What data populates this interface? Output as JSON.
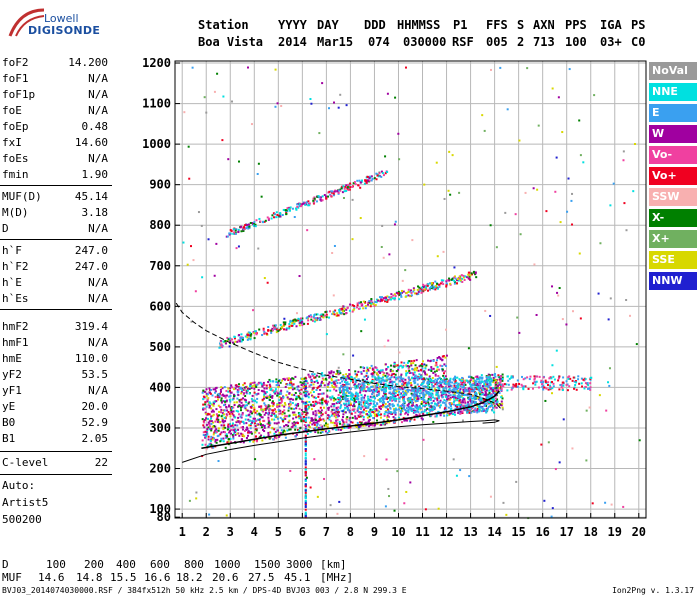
{
  "logo": {
    "line1": "Lowell",
    "line2": "DIGISONDE"
  },
  "header": {
    "labels": [
      "Station",
      "YYYY",
      "DAY",
      "DDD",
      "HHMMSS",
      "P1",
      "FFS",
      "S",
      "AXN",
      "PPS",
      "IGA",
      "PS"
    ],
    "values": [
      "Boa Vista",
      "2014",
      "Mar15",
      "074",
      "030000",
      "RSF",
      "005",
      "2",
      "713",
      "100",
      "03+",
      "C0"
    ]
  },
  "params": {
    "group1": [
      {
        "label": "foF2",
        "value": "14.200"
      },
      {
        "label": "foF1",
        "value": "N/A"
      },
      {
        "label": "foF1p",
        "value": "N/A"
      },
      {
        "label": "foE",
        "value": "N/A"
      },
      {
        "label": "foEp",
        "value": "0.48"
      },
      {
        "label": "fxI",
        "value": "14.60"
      },
      {
        "label": "foEs",
        "value": "N/A"
      },
      {
        "label": "fmin",
        "value": "1.90"
      }
    ],
    "group2": [
      {
        "label": "MUF(D)",
        "value": "45.14"
      },
      {
        "label": "M(D)",
        "value": "3.18"
      },
      {
        "label": "D",
        "value": "N/A"
      }
    ],
    "group3": [
      {
        "label": "h`F",
        "value": "247.0"
      },
      {
        "label": "h`F2",
        "value": "247.0"
      },
      {
        "label": "h`E",
        "value": "N/A"
      },
      {
        "label": "h`Es",
        "value": "N/A"
      }
    ],
    "group4": [
      {
        "label": "hmF2",
        "value": "319.4"
      },
      {
        "label": "hmF1",
        "value": "N/A"
      },
      {
        "label": "hmE",
        "value": "110.0"
      },
      {
        "label": "yF2",
        "value": "53.5"
      },
      {
        "label": "yF1",
        "value": "N/A"
      },
      {
        "label": "yE",
        "value": "20.0"
      },
      {
        "label": "B0",
        "value": "52.9"
      },
      {
        "label": "B1",
        "value": "2.05"
      }
    ],
    "group5": [
      {
        "label": "C-level",
        "value": "22"
      }
    ],
    "auto": [
      "Auto:",
      "Artist5",
      "500200"
    ]
  },
  "legend": [
    {
      "label": "NoVal",
      "color": "#9a9a9a"
    },
    {
      "label": "NNE",
      "color": "#00e0e0"
    },
    {
      "label": "E",
      "color": "#3aa0f0"
    },
    {
      "label": "W",
      "color": "#a000a0"
    },
    {
      "label": "Vo-",
      "color": "#f040a0"
    },
    {
      "label": "Vo+",
      "color": "#f00020"
    },
    {
      "label": "SSW",
      "color": "#f8b0b0"
    },
    {
      "label": "X-",
      "color": "#008000"
    },
    {
      "label": "X+",
      "color": "#70b060"
    },
    {
      "label": "SSE",
      "color": "#d8d800"
    },
    {
      "label": "NNW",
      "color": "#2020d0"
    }
  ],
  "chart_data": {
    "type": "scatter",
    "xlim": [
      0.7,
      20.3
    ],
    "ylim": [
      78,
      1205
    ],
    "x_ticks": [
      1,
      2,
      3,
      4,
      5,
      6,
      7,
      8,
      9,
      10,
      11,
      12,
      13,
      14,
      15,
      16,
      17,
      18,
      19,
      20
    ],
    "y_ticks": [
      80,
      100,
      200,
      300,
      400,
      500,
      600,
      700,
      800,
      900,
      1000,
      1100,
      1200
    ],
    "grid": true,
    "traces": [
      {
        "name": "",
        "points": [
          [
            1.8,
            250
          ],
          [
            3,
            262
          ],
          [
            4,
            272
          ],
          [
            5,
            282
          ],
          [
            6,
            290
          ],
          [
            7,
            298
          ],
          [
            8,
            305
          ],
          [
            9,
            312
          ],
          [
            10,
            320
          ],
          [
            11,
            330
          ],
          [
            12,
            340
          ],
          [
            13,
            352
          ],
          [
            13.5,
            362
          ],
          [
            14,
            378
          ],
          [
            14.2,
            392
          ]
        ]
      },
      {
        "name": "",
        "points": [
          [
            1,
            215
          ],
          [
            2,
            235
          ],
          [
            3,
            247
          ],
          [
            4,
            257
          ],
          [
            5,
            266
          ],
          [
            6,
            275
          ],
          [
            7,
            283
          ],
          [
            8,
            290
          ],
          [
            9,
            297
          ],
          [
            10,
            303
          ],
          [
            11,
            308
          ],
          [
            12,
            312
          ],
          [
            13,
            316
          ],
          [
            13.6,
            318
          ],
          [
            14,
            320
          ],
          [
            14.2,
            318
          ],
          [
            14,
            314
          ],
          [
            13.5,
            312
          ]
        ]
      },
      {
        "name": "",
        "points": [
          [
            0.75,
            608
          ],
          [
            1,
            585
          ],
          [
            1.5,
            560
          ],
          [
            2,
            540
          ],
          [
            3,
            510
          ],
          [
            4,
            485
          ],
          [
            5,
            462
          ],
          [
            6,
            445
          ],
          [
            7,
            430
          ],
          [
            8,
            420
          ],
          [
            9,
            410
          ],
          [
            10,
            402
          ],
          [
            11,
            397
          ],
          [
            12,
            391
          ],
          [
            13,
            383
          ],
          [
            13.7,
            370
          ],
          [
            14.1,
            358
          ],
          [
            14.3,
            345
          ]
        ]
      }
    ]
  },
  "bottom": {
    "d_label": "D",
    "d_values": [
      "100",
      "200",
      "400",
      "600",
      "800",
      "1000",
      "1500",
      "3000"
    ],
    "d_unit": "[km]",
    "muf_label": "MUF",
    "muf_values": [
      "14.6",
      "14.8",
      "15.5",
      "16.6",
      "18.2",
      "20.6",
      "27.5",
      "45.1"
    ],
    "muf_unit": "[MHz]",
    "footer": "BVJ03_2014074030000.RSF / 384fx512h 50 kHz 2.5 km / DPS-4D BVJ03 003 / 2.8 N 299.3 E",
    "version": "Ion2Png v. 1.3.17"
  }
}
